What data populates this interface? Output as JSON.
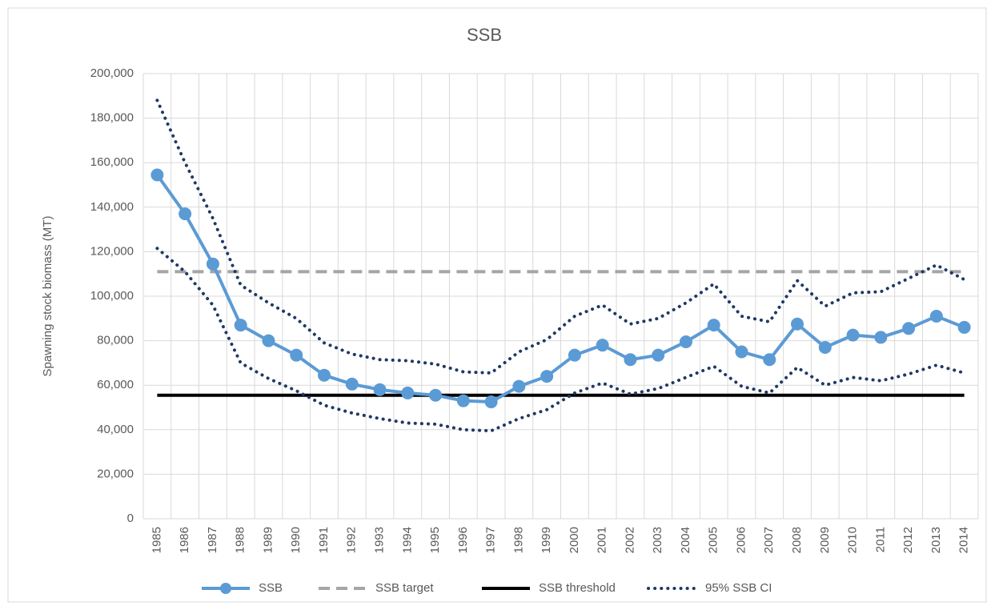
{
  "chart_data": {
    "type": "line",
    "title": "SSB",
    "y_label": "Spawning stock biomass (MT)",
    "categories": [
      "1985",
      "1986",
      "1987",
      "1988",
      "1989",
      "1990",
      "1991",
      "1992",
      "1993",
      "1994",
      "1995",
      "1996",
      "1997",
      "1998",
      "1999",
      "2000",
      "2001",
      "2002",
      "2003",
      "2004",
      "2005",
      "2006",
      "2007",
      "2008",
      "2009",
      "2010",
      "2011",
      "2012",
      "2013",
      "2014"
    ],
    "ylim": [
      0,
      200000
    ],
    "yticks": [
      0,
      {
        "value": 20000,
        "label": "20,000"
      },
      {
        "value": 40000,
        "label": "40,000"
      },
      {
        "value": 60000,
        "label": "60,000"
      },
      {
        "value": 80000,
        "label": "80,000"
      },
      {
        "value": 100000,
        "label": "100,000"
      },
      {
        "value": 120000,
        "label": "120,000"
      },
      {
        "value": 140000,
        "label": "140,000"
      },
      {
        "value": 160000,
        "label": "160,000"
      },
      {
        "value": 180000,
        "label": "180,000"
      },
      {
        "value": 200000,
        "label": "200,000"
      }
    ],
    "grid": true,
    "series": [
      {
        "name": "SSB",
        "color": "#5b9bd5",
        "style": "solid",
        "marker": true,
        "values": [
          154500,
          137000,
          114500,
          87000,
          80000,
          73500,
          64500,
          60500,
          58000,
          56500,
          55500,
          53000,
          52500,
          59500,
          64000,
          73500,
          78000,
          71500,
          73500,
          79500,
          87000,
          75000,
          71500,
          87500,
          77000,
          82500,
          81500,
          85500,
          91000,
          86000
        ]
      },
      {
        "name": "SSB target",
        "color": "#a5a5a5",
        "style": "dashed",
        "marker": false,
        "values": [
          111000,
          111000,
          111000,
          111000,
          111000,
          111000,
          111000,
          111000,
          111000,
          111000,
          111000,
          111000,
          111000,
          111000,
          111000,
          111000,
          111000,
          111000,
          111000,
          111000,
          111000,
          111000,
          111000,
          111000,
          111000,
          111000,
          111000,
          111000,
          111000,
          111000
        ]
      },
      {
        "name": "SSB threshold",
        "color": "#000000",
        "style": "solid",
        "marker": false,
        "values": [
          55500,
          55500,
          55500,
          55500,
          55500,
          55500,
          55500,
          55500,
          55500,
          55500,
          55500,
          55500,
          55500,
          55500,
          55500,
          55500,
          55500,
          55500,
          55500,
          55500,
          55500,
          55500,
          55500,
          55500,
          55500,
          55500,
          55500,
          55500,
          55500,
          55500
        ]
      },
      {
        "name": "95% SSB CI",
        "color": "#203864",
        "style": "dotted",
        "marker": false,
        "upper": [
          188000,
          160000,
          135000,
          105000,
          97000,
          90000,
          79000,
          74000,
          71500,
          71000,
          69500,
          66000,
          65500,
          75000,
          80500,
          91000,
          96000,
          87500,
          90000,
          97000,
          105500,
          91000,
          88500,
          107000,
          95500,
          101500,
          102000,
          108000,
          114000,
          107500
        ],
        "lower": [
          121500,
          111000,
          96000,
          70000,
          63000,
          57500,
          51000,
          47500,
          45000,
          43000,
          42500,
          40000,
          39500,
          45000,
          49000,
          56500,
          61000,
          56000,
          58500,
          63500,
          68500,
          59500,
          56500,
          68000,
          60000,
          63500,
          62000,
          65000,
          69000,
          65500
        ]
      }
    ]
  }
}
